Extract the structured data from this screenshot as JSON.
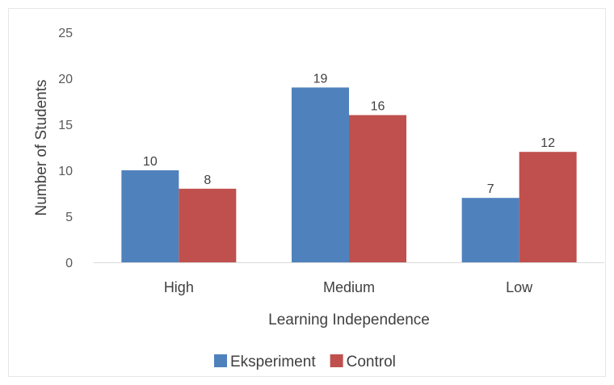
{
  "chart_data": {
    "type": "bar",
    "categories": [
      "High",
      "Medium",
      "Low"
    ],
    "series": [
      {
        "name": "Eksperiment",
        "values": [
          10,
          19,
          7
        ],
        "color": "#4f81bd"
      },
      {
        "name": "Control",
        "values": [
          8,
          16,
          12
        ],
        "color": "#c0504d"
      }
    ],
    "xlabel": "Learning Independence",
    "ylabel": "Number of Students",
    "ylim": [
      0,
      25
    ],
    "yticks": [
      0,
      5,
      10,
      15,
      20,
      25
    ],
    "grid": false,
    "data_labels": true,
    "legend_position": "bottom"
  }
}
